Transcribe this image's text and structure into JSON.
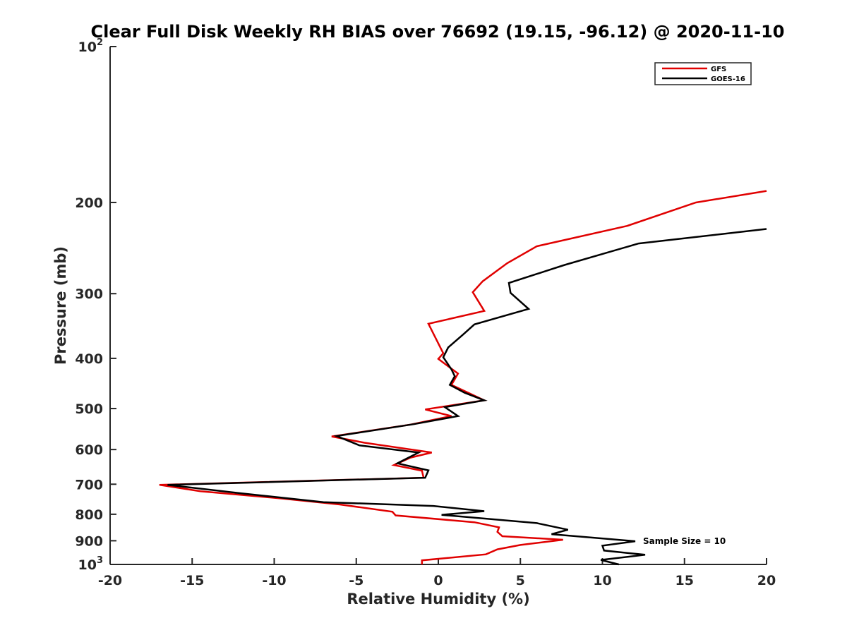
{
  "chart_data": {
    "type": "line",
    "title": "Clear Full Disk Weekly RH BIAS over 76692 (19.15, -96.12) @ 2020-11-10",
    "xlabel": "Relative Humidity (%)",
    "ylabel": "Pressure (mb)",
    "xlim": [
      -20,
      20
    ],
    "ylim": [
      100,
      1000
    ],
    "yscale": "log",
    "yreversed": true,
    "x_ticks": [
      -20,
      -15,
      -10,
      -5,
      0,
      5,
      10,
      15,
      20
    ],
    "y_ticks": [
      {
        "value": 100,
        "label": "10",
        "sup": "2"
      },
      {
        "value": 200,
        "label": "200",
        "sup": ""
      },
      {
        "value": 300,
        "label": "300",
        "sup": ""
      },
      {
        "value": 400,
        "label": "400",
        "sup": ""
      },
      {
        "value": 500,
        "label": "500",
        "sup": ""
      },
      {
        "value": 600,
        "label": "600",
        "sup": ""
      },
      {
        "value": 700,
        "label": "700",
        "sup": ""
      },
      {
        "value": 800,
        "label": "800",
        "sup": ""
      },
      {
        "value": 900,
        "label": "900",
        "sup": ""
      },
      {
        "value": 1000,
        "label": "10",
        "sup": "3"
      }
    ],
    "grid": false,
    "legend_position": "top-right",
    "annotation": {
      "text": "Sample Size = 10",
      "x": 12.5,
      "y": 900
    },
    "series": [
      {
        "name": "GFS",
        "color": "#e00000",
        "points": [
          [
            20,
            190
          ],
          [
            15.7,
            200
          ],
          [
            11.5,
            222
          ],
          [
            6,
            243
          ],
          [
            4.2,
            262
          ],
          [
            2.7,
            284
          ],
          [
            2.1,
            298
          ],
          [
            2.8,
            324
          ],
          [
            -0.6,
            343
          ],
          [
            0.3,
            391
          ],
          [
            0,
            401
          ],
          [
            1.2,
            428
          ],
          [
            0.8,
            450
          ],
          [
            2.8,
            482
          ],
          [
            -0.8,
            502
          ],
          [
            0.8,
            517
          ],
          [
            -1.7,
            537
          ],
          [
            -6.5,
            566
          ],
          [
            -4.5,
            582
          ],
          [
            -0.4,
            608
          ],
          [
            -1.7,
            622
          ],
          [
            -2.7,
            643
          ],
          [
            -1,
            659
          ],
          [
            -0.9,
            680
          ],
          [
            -17,
            702
          ],
          [
            -14.5,
            722
          ],
          [
            -9.5,
            746
          ],
          [
            -6,
            766
          ],
          [
            -2.8,
            791
          ],
          [
            -2.6,
            804
          ],
          [
            2.2,
            829
          ],
          [
            3.7,
            848
          ],
          [
            3.6,
            865
          ],
          [
            3.9,
            882
          ],
          [
            7.6,
            896
          ],
          [
            5,
            917
          ],
          [
            3.6,
            935
          ],
          [
            2.9,
            956
          ],
          [
            -1,
            982
          ],
          [
            -1,
            1000
          ]
        ]
      },
      {
        "name": "GOES-16",
        "color": "#000000",
        "points": [
          [
            20,
            225
          ],
          [
            12.2,
            240
          ],
          [
            7.7,
            264
          ],
          [
            4.3,
            286
          ],
          [
            4.4,
            299
          ],
          [
            5.5,
            321
          ],
          [
            2.2,
            344
          ],
          [
            1.5,
            360
          ],
          [
            0.6,
            381
          ],
          [
            0.3,
            398
          ],
          [
            0.8,
            420
          ],
          [
            1,
            433
          ],
          [
            0.7,
            450
          ],
          [
            1.6,
            466
          ],
          [
            2.8,
            482
          ],
          [
            0.4,
            497
          ],
          [
            1.2,
            517
          ],
          [
            -1.5,
            536
          ],
          [
            -6.2,
            565
          ],
          [
            -4.8,
            589
          ],
          [
            -1.2,
            608
          ],
          [
            -2.5,
            638
          ],
          [
            -0.6,
            658
          ],
          [
            -0.8,
            680
          ],
          [
            -16.5,
            702
          ],
          [
            -12,
            729
          ],
          [
            -7,
            758
          ],
          [
            -0.3,
            771
          ],
          [
            2.8,
            789
          ],
          [
            0.2,
            802
          ],
          [
            6,
            832
          ],
          [
            7.9,
            857
          ],
          [
            6.9,
            874
          ],
          [
            12,
            902
          ],
          [
            10,
            920
          ],
          [
            10.1,
            940
          ],
          [
            12.6,
            958
          ],
          [
            9.9,
            980
          ],
          [
            11,
            1000
          ]
        ]
      }
    ]
  }
}
